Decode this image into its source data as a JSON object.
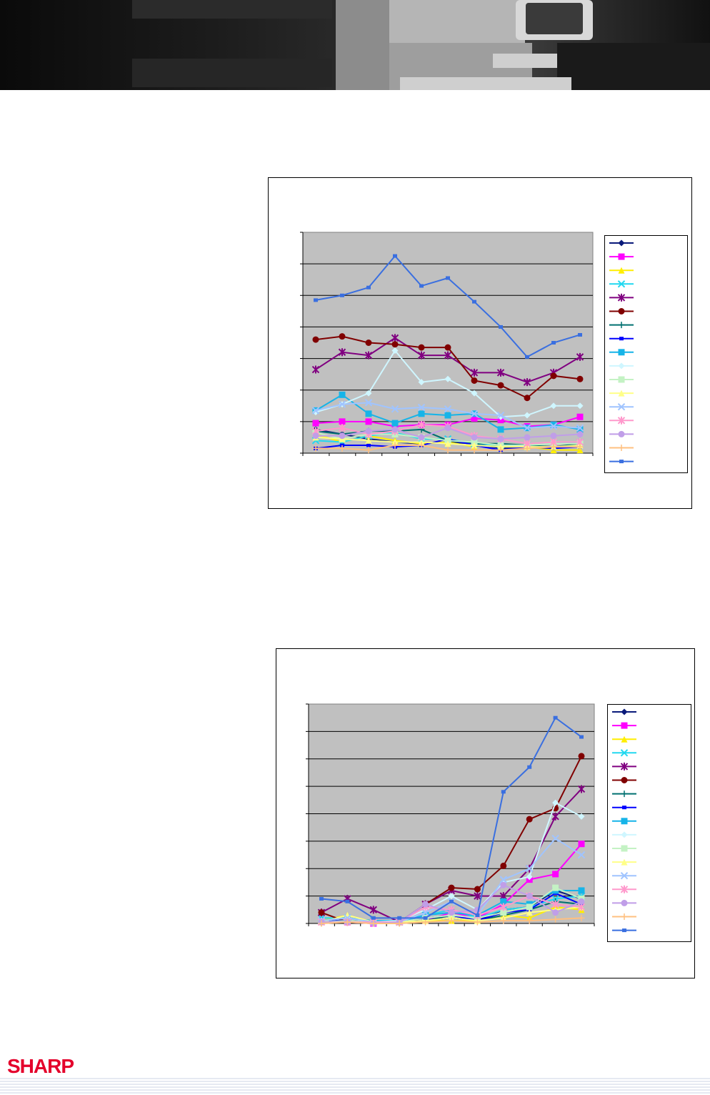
{
  "brand": {
    "logo_text": "SHARP",
    "logo_color": "#e4002b"
  },
  "series_styles": [
    {
      "color": "#0a1a7a",
      "marker": "diamond"
    },
    {
      "color": "#ff00ff",
      "marker": "square"
    },
    {
      "color": "#ffee00",
      "marker": "triangle"
    },
    {
      "color": "#22d8f0",
      "marker": "x"
    },
    {
      "color": "#800080",
      "marker": "star"
    },
    {
      "color": "#800000",
      "marker": "circle"
    },
    {
      "color": "#007070",
      "marker": "plus"
    },
    {
      "color": "#0000ff",
      "marker": "small-square"
    },
    {
      "color": "#16b4e8",
      "marker": "square"
    },
    {
      "color": "#cff6ff",
      "marker": "diamond"
    },
    {
      "color": "#c4f2c4",
      "marker": "square"
    },
    {
      "color": "#ffff88",
      "marker": "triangle"
    },
    {
      "color": "#a0c4ff",
      "marker": "x"
    },
    {
      "color": "#ff99cc",
      "marker": "star"
    },
    {
      "color": "#c09ee8",
      "marker": "circle"
    },
    {
      "color": "#ffc080",
      "marker": "plus"
    },
    {
      "color": "#3a6fe0",
      "marker": "small-square"
    }
  ],
  "chart_data": [
    {
      "type": "line",
      "grid": true,
      "legend_placement": "right",
      "plot_background": "#c0c0c0",
      "ylim": [
        0,
        7
      ],
      "x": [
        1,
        2,
        3,
        4,
        5,
        6,
        7,
        8,
        9,
        10,
        11
      ],
      "series": [
        {
          "values": [
            0.75,
            0.6,
            0.45,
            0.35,
            0.3,
            0.35,
            0.3,
            0.15,
            0.2,
            0.2,
            0.2
          ]
        },
        {
          "values": [
            0.95,
            1.0,
            1.0,
            0.85,
            0.9,
            0.9,
            1.1,
            1.05,
            0.85,
            0.9,
            1.15
          ]
        },
        {
          "values": [
            0.6,
            0.35,
            0.55,
            0.4,
            0.3,
            0.35,
            0.2,
            0.25,
            0.2,
            0.1,
            0.1
          ]
        },
        {
          "values": [
            0.4,
            0.35,
            0.55,
            0.65,
            0.45,
            0.45,
            0.3,
            0.25,
            0.25,
            0.3,
            0.35
          ]
        },
        {
          "values": [
            2.65,
            3.2,
            3.1,
            3.65,
            3.1,
            3.1,
            2.55,
            2.55,
            2.25,
            2.55,
            3.05
          ]
        },
        {
          "values": [
            3.6,
            3.7,
            3.5,
            3.45,
            3.35,
            3.35,
            2.3,
            2.15,
            1.75,
            2.45,
            2.35
          ]
        },
        {
          "values": [
            0.7,
            0.6,
            0.7,
            0.7,
            0.75,
            0.4,
            0.3,
            0.3,
            0.25,
            0.2,
            0.3
          ]
        },
        {
          "values": [
            0.15,
            0.25,
            0.25,
            0.2,
            0.25,
            0.45,
            0.25,
            0.1,
            0.2,
            0.15,
            0.2
          ]
        },
        {
          "values": [
            1.35,
            1.85,
            1.25,
            0.95,
            1.25,
            1.2,
            1.25,
            0.75,
            0.8,
            0.9,
            0.75
          ]
        },
        {
          "values": [
            1.3,
            1.55,
            1.9,
            3.25,
            2.25,
            2.35,
            1.9,
            1.15,
            1.2,
            1.5,
            1.5
          ]
        },
        {
          "values": [
            0.65,
            0.45,
            0.6,
            0.6,
            0.5,
            0.4,
            0.35,
            0.25,
            0.25,
            0.3,
            0.3
          ]
        },
        {
          "values": [
            0.5,
            0.45,
            0.4,
            0.35,
            0.35,
            0.3,
            0.25,
            0.2,
            0.2,
            0.2,
            0.25
          ]
        },
        {
          "values": [
            1.35,
            1.55,
            1.6,
            1.4,
            1.45,
            1.4,
            1.25,
            1.2,
            0.8,
            0.85,
            0.8
          ]
        },
        {
          "values": [
            0.7,
            0.8,
            0.6,
            0.7,
            0.9,
            0.85,
            0.55,
            0.45,
            0.3,
            0.35,
            0.35
          ]
        },
        {
          "values": [
            0.55,
            0.55,
            0.7,
            0.75,
            0.5,
            0.8,
            0.5,
            0.45,
            0.5,
            0.55,
            0.6
          ]
        },
        {
          "values": [
            0.15,
            0.15,
            0.1,
            0.25,
            0.25,
            0.1,
            0.1,
            0.1,
            0.15,
            0.2,
            0.2
          ]
        },
        {
          "values": [
            4.85,
            5.0,
            5.25,
            6.25,
            5.3,
            5.55,
            4.8,
            4.0,
            3.05,
            3.5,
            3.75
          ]
        }
      ]
    },
    {
      "type": "line",
      "grid": true,
      "legend_placement": "right",
      "plot_background": "#c0c0c0",
      "ylim": [
        0,
        8
      ],
      "x": [
        1,
        2,
        3,
        4,
        5,
        6,
        7,
        8,
        9,
        10,
        11
      ],
      "series": [
        {
          "values": [
            0.1,
            0.1,
            0.05,
            0.05,
            0.1,
            0.2,
            0.1,
            0.5,
            0.6,
            1.2,
            0.9
          ]
        },
        {
          "values": [
            0.05,
            0.05,
            0.0,
            0.05,
            0.1,
            0.4,
            0.2,
            0.7,
            1.6,
            1.8,
            2.9
          ]
        },
        {
          "values": [
            0.1,
            0.3,
            0.05,
            0.05,
            0.1,
            0.1,
            0.1,
            0.3,
            0.2,
            0.6,
            0.5
          ]
        },
        {
          "values": [
            0.2,
            0.2,
            0.05,
            0.05,
            0.3,
            0.5,
            0.2,
            0.5,
            0.6,
            0.9,
            1.0
          ]
        },
        {
          "values": [
            0.4,
            0.9,
            0.5,
            0.05,
            0.7,
            1.2,
            1.0,
            1.0,
            2.0,
            3.9,
            4.9
          ]
        },
        {
          "values": [
            0.4,
            0.05,
            0.05,
            0.05,
            0.7,
            1.3,
            1.25,
            2.1,
            3.8,
            4.2,
            6.1
          ]
        },
        {
          "values": [
            0.1,
            0.2,
            0.05,
            0.05,
            0.1,
            0.3,
            0.1,
            0.3,
            0.5,
            0.8,
            0.7
          ]
        },
        {
          "values": [
            0.1,
            0.1,
            0.05,
            0.05,
            0.2,
            0.3,
            0.1,
            0.4,
            0.5,
            1.1,
            0.7
          ]
        },
        {
          "values": [
            0.1,
            0.2,
            0.1,
            0.1,
            0.3,
            0.4,
            0.3,
            0.8,
            0.7,
            1.2,
            1.2
          ]
        },
        {
          "values": [
            0.1,
            0.2,
            0.05,
            0.1,
            0.5,
            1.0,
            0.5,
            1.5,
            1.7,
            4.4,
            3.9
          ]
        },
        {
          "values": [
            0.05,
            0.1,
            0.05,
            0.05,
            0.2,
            0.3,
            0.2,
            0.4,
            0.6,
            1.3,
            0.9
          ]
        },
        {
          "values": [
            0.05,
            0.3,
            0.05,
            0.05,
            0.1,
            0.2,
            0.1,
            0.2,
            0.4,
            0.5,
            0.6
          ]
        },
        {
          "values": [
            0.1,
            0.2,
            0.05,
            0.05,
            0.4,
            0.8,
            0.3,
            1.6,
            2.0,
            3.1,
            2.5
          ]
        },
        {
          "values": [
            0.05,
            0.05,
            0.05,
            0.05,
            0.6,
            0.5,
            0.3,
            0.6,
            1.0,
            0.7,
            0.6
          ]
        },
        {
          "values": [
            0.05,
            0.05,
            0.0,
            0.05,
            0.7,
            0.4,
            0.5,
            1.4,
            1.0,
            0.4,
            0.8
          ]
        },
        {
          "values": [
            0.0,
            0.05,
            0.0,
            0.0,
            0.05,
            0.1,
            0.05,
            0.1,
            0.1,
            0.15,
            0.2
          ]
        },
        {
          "values": [
            0.9,
            0.8,
            0.2,
            0.2,
            0.2,
            0.8,
            0.3,
            4.8,
            5.7,
            7.5,
            6.8
          ]
        }
      ]
    }
  ]
}
